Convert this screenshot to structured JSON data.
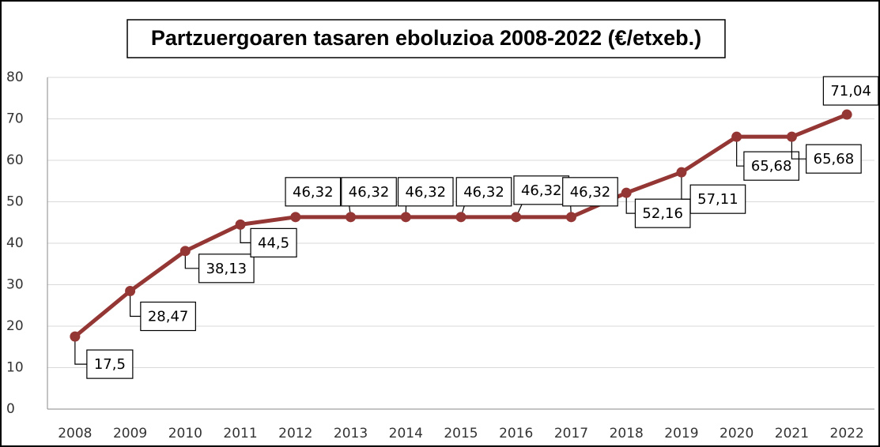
{
  "chart_data": {
    "type": "line",
    "title": "Partzuergoaren tasaren eboluzioa 2008-2022 (€/etxeb.)",
    "categories": [
      "2008",
      "2009",
      "2010",
      "2011",
      "2012",
      "2013",
      "2014",
      "2015",
      "2016",
      "2017",
      "2018",
      "2019",
      "2020",
      "2021",
      "2022"
    ],
    "values": [
      17.5,
      28.47,
      38.13,
      44.5,
      46.32,
      46.32,
      46.32,
      46.32,
      46.32,
      46.32,
      52.16,
      57.11,
      65.68,
      65.68,
      71.04
    ],
    "value_labels": [
      "17,5",
      "28,47",
      "38,13",
      "44,5",
      "46,32",
      "46,32",
      "46,32",
      "46,32",
      "46,32",
      "46,32",
      "52,16",
      "57,11",
      "65,68",
      "65,68",
      "71,04"
    ],
    "color": "#943634",
    "ylim": [
      0,
      80
    ],
    "yticks": [
      0,
      10,
      20,
      30,
      40,
      50,
      60,
      70,
      80
    ],
    "grid": true
  }
}
